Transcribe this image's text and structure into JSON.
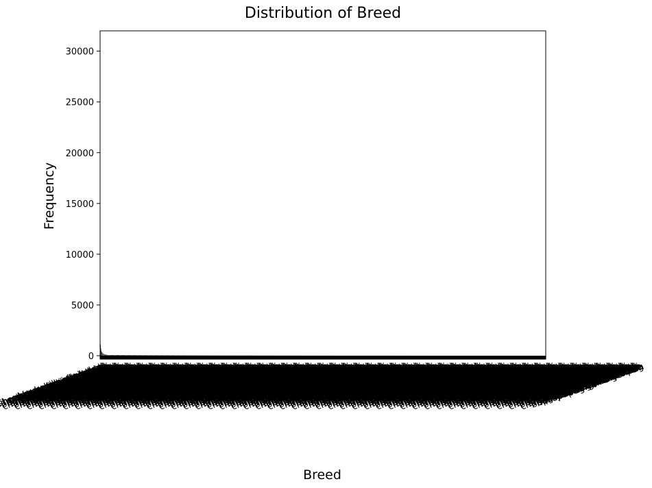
{
  "chart_data": {
    "type": "bar",
    "title": "Distribution of Breed",
    "xlabel": "Breed",
    "ylabel": "Frequency",
    "ylim": [
      0,
      32000
    ],
    "yticks": [
      0,
      5000,
      10000,
      15000,
      20000,
      25000,
      30000
    ],
    "grid": false,
    "legend": "none",
    "bar_color": "#000000",
    "categories": [
      "shepherd",
      "retriever",
      "german",
      "chihuahua",
      "american",
      "dog",
      "mixed",
      "shorthair",
      "miniature",
      "terrier",
      "lab",
      "pit bull",
      "beagle",
      "poodle",
      "husky",
      "boxer",
      "collie",
      "spaniel",
      "corgi",
      "pug"
    ],
    "values": [
      1800,
      1100,
      750,
      520,
      410,
      340,
      290,
      250,
      215,
      190,
      170,
      150,
      135,
      120,
      110,
      100,
      92,
      85,
      78,
      72
    ],
    "long_tail": {
      "category_count": 1200,
      "start_value": 70,
      "end_value": 1
    }
  }
}
